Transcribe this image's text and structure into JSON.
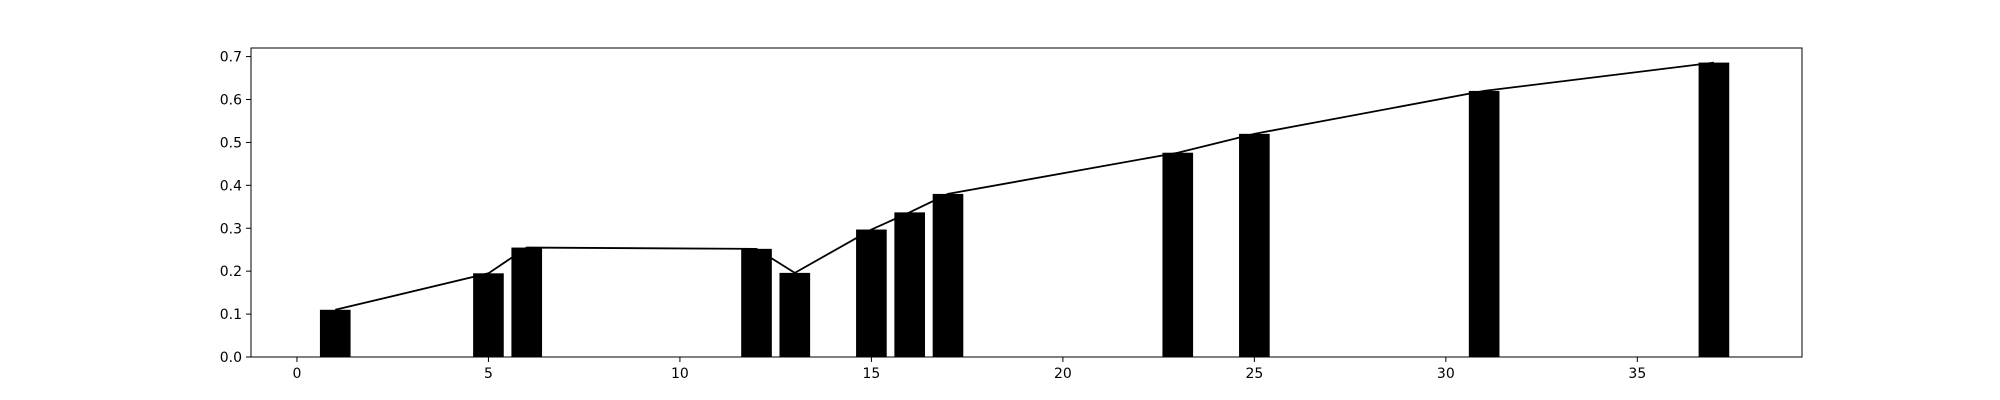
{
  "chart_data": {
    "type": "bar",
    "x": [
      1,
      5,
      6,
      12,
      13,
      15,
      16,
      17,
      23,
      25,
      31,
      37
    ],
    "values": [
      0.11,
      0.195,
      0.255,
      0.252,
      0.196,
      0.297,
      0.337,
      0.38,
      0.476,
      0.52,
      0.62,
      0.686
    ],
    "line": {
      "x": [
        1,
        5,
        6,
        12,
        13,
        15,
        16,
        17,
        23,
        25,
        31,
        37
      ],
      "y": [
        0.11,
        0.195,
        0.255,
        0.252,
        0.196,
        0.297,
        0.337,
        0.38,
        0.476,
        0.52,
        0.62,
        0.686
      ]
    },
    "title": "",
    "xlabel": "",
    "ylabel": "",
    "xlim": [
      -1.2,
      39.3
    ],
    "ylim": [
      0,
      0.72
    ],
    "xticks": [
      0,
      5,
      10,
      15,
      20,
      25,
      30,
      35
    ],
    "yticks": [
      0.0,
      0.1,
      0.2,
      0.3,
      0.4,
      0.5,
      0.6,
      0.7
    ],
    "xtick_labels": [
      "0",
      "5",
      "10",
      "15",
      "20",
      "25",
      "30",
      "35"
    ],
    "ytick_labels": [
      "0.0",
      "0.1",
      "0.2",
      "0.3",
      "0.4",
      "0.5",
      "0.6",
      "0.7"
    ],
    "grid": false,
    "bar_color": "#000000",
    "line_color": "#000000"
  }
}
